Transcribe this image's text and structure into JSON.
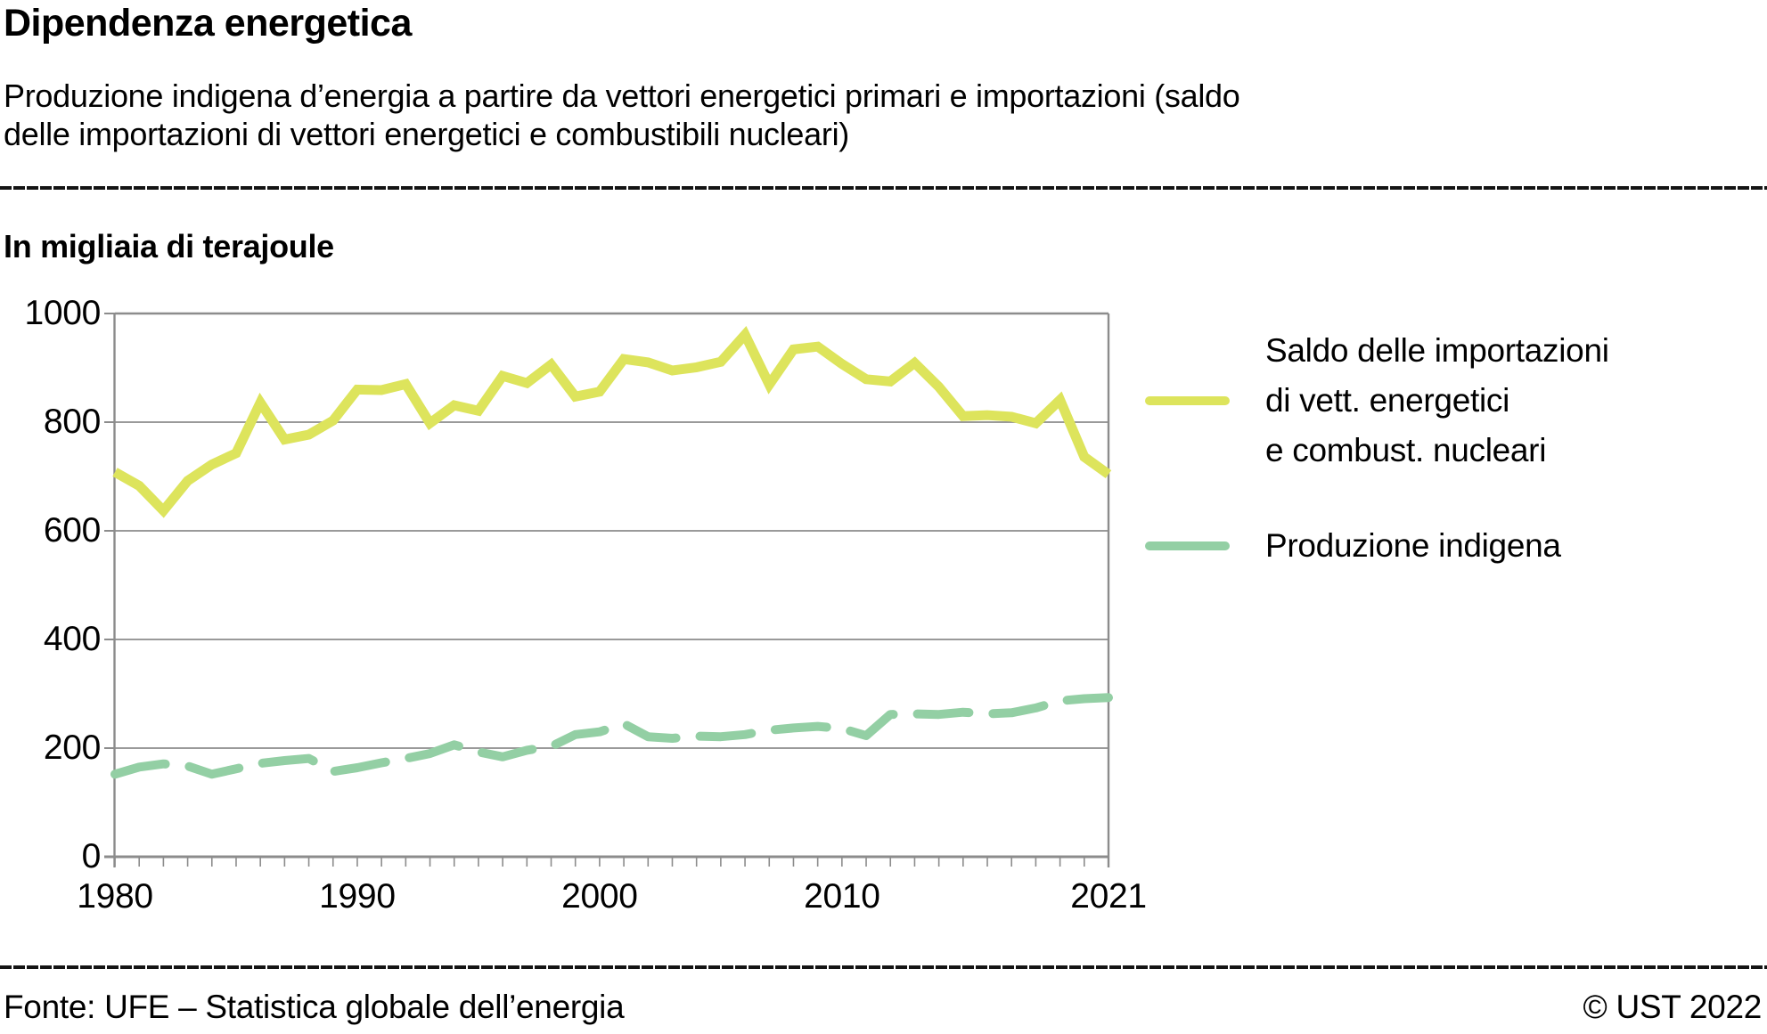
{
  "header": {
    "title": "Dipendenza energetica",
    "subtitle_lines": [
      "Produzione indigena d’energia a partire da vettori energetici primari e importazioni (saldo",
      "delle importazioni di vettori energetici e combustibili nucleari)"
    ]
  },
  "unit_label": "In migliaia di terajoule",
  "chart_data": {
    "type": "line",
    "title": "Dipendenza energetica",
    "ylabel": "In migliaia di terajoule",
    "xlabel": "",
    "xlim": [
      1980,
      2021
    ],
    "ylim": [
      0,
      1000
    ],
    "yticks": [
      0,
      200,
      400,
      600,
      800,
      1000
    ],
    "ytick_labels": [
      "0",
      "200",
      "400",
      "600",
      "800",
      "1000"
    ],
    "xticks": [
      1980,
      1990,
      2000,
      2010,
      2021
    ],
    "xtick_labels": [
      "1980",
      "1990",
      "2000",
      "2010",
      "2021"
    ],
    "grid": "horizontal",
    "legend_position": "right",
    "x": [
      1980,
      1981,
      1982,
      1983,
      1984,
      1985,
      1986,
      1987,
      1988,
      1989,
      1990,
      1991,
      1992,
      1993,
      1994,
      1995,
      1996,
      1997,
      1998,
      1999,
      2000,
      2001,
      2002,
      2003,
      2004,
      2005,
      2006,
      2007,
      2008,
      2009,
      2010,
      2011,
      2012,
      2013,
      2014,
      2015,
      2016,
      2017,
      2018,
      2019,
      2020,
      2021
    ],
    "series": [
      {
        "name": "Saldo delle importazioni di vett. energetici e combust. nucleari",
        "style": "solid",
        "color": "#dde45c",
        "values": [
          708,
          683,
          637,
          692,
          722,
          743,
          836,
          768,
          777,
          803,
          860,
          859,
          870,
          798,
          831,
          821,
          885,
          872,
          906,
          847,
          856,
          916,
          910,
          895,
          901,
          911,
          961,
          869,
          934,
          939,
          907,
          879,
          875,
          909,
          865,
          811,
          813,
          810,
          798,
          841,
          736,
          704
        ]
      },
      {
        "name": "Produzione indigena",
        "style": "dashed",
        "color": "#93cfa4",
        "values": [
          152,
          165,
          171,
          167,
          152,
          162,
          172,
          177,
          181,
          157,
          164,
          173,
          181,
          190,
          206,
          193,
          184,
          196,
          203,
          225,
          230,
          245,
          221,
          218,
          222,
          221,
          225,
          233,
          237,
          240,
          236,
          223,
          262,
          263,
          262,
          266,
          263,
          265,
          274,
          287,
          291,
          293
        ]
      }
    ]
  },
  "legend": {
    "items": [
      {
        "color": "#dde45c",
        "label_lines": [
          "Saldo delle importazioni",
          "di vett. energetici",
          "e combust. nucleari"
        ]
      },
      {
        "color": "#93cfa4",
        "label_lines": [
          "Produzione indigena"
        ]
      }
    ]
  },
  "footer": {
    "source": "Fonte: UFE – Statistica globale dell’energia",
    "copyright": "© UST 2022"
  }
}
